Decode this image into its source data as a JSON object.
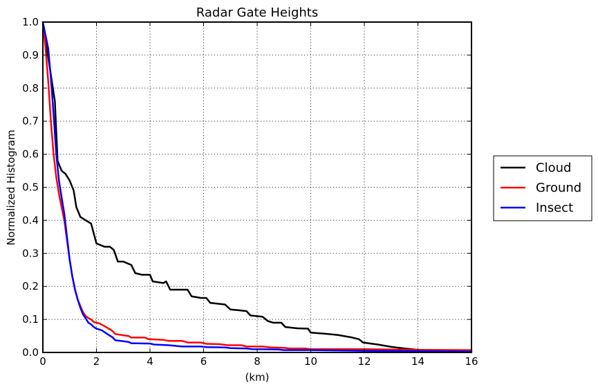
{
  "chart_data": {
    "type": "line",
    "title": "Radar Gate Heights",
    "xlabel": "(km)",
    "ylabel": "Normalized Histogram",
    "xlim": [
      0,
      16
    ],
    "ylim": [
      0,
      1.0
    ],
    "x_ticks": [
      "0",
      "2",
      "4",
      "6",
      "8",
      "10",
      "12",
      "14",
      "16"
    ],
    "y_ticks": [
      "0.0",
      "0.1",
      "0.2",
      "0.3",
      "0.4",
      "0.5",
      "0.6",
      "0.7",
      "0.8",
      "0.9",
      "1.0"
    ],
    "grid": true,
    "legend_position": "right, outside plot",
    "series": [
      {
        "name": "Cloud",
        "color": "#000000",
        "points": [
          [
            0,
            1.0
          ],
          [
            0.15,
            0.92
          ],
          [
            0.3,
            0.84
          ],
          [
            0.45,
            0.76
          ],
          [
            0.55,
            0.58
          ],
          [
            0.7,
            0.55
          ],
          [
            0.85,
            0.54
          ],
          [
            1.0,
            0.52
          ],
          [
            1.15,
            0.49
          ],
          [
            1.25,
            0.44
          ],
          [
            1.4,
            0.41
          ],
          [
            1.6,
            0.4
          ],
          [
            1.8,
            0.39
          ],
          [
            2.0,
            0.33
          ],
          [
            2.3,
            0.32
          ],
          [
            2.5,
            0.32
          ],
          [
            2.65,
            0.31
          ],
          [
            2.8,
            0.275
          ],
          [
            3.0,
            0.275
          ],
          [
            3.15,
            0.27
          ],
          [
            3.3,
            0.265
          ],
          [
            3.45,
            0.24
          ],
          [
            3.7,
            0.235
          ],
          [
            4.0,
            0.235
          ],
          [
            4.1,
            0.215
          ],
          [
            4.5,
            0.21
          ],
          [
            4.6,
            0.215
          ],
          [
            4.75,
            0.19
          ],
          [
            5.2,
            0.19
          ],
          [
            5.4,
            0.19
          ],
          [
            5.55,
            0.17
          ],
          [
            5.9,
            0.165
          ],
          [
            6.1,
            0.165
          ],
          [
            6.25,
            0.15
          ],
          [
            6.8,
            0.145
          ],
          [
            7.0,
            0.13
          ],
          [
            7.3,
            0.128
          ],
          [
            7.6,
            0.125
          ],
          [
            7.75,
            0.112
          ],
          [
            8.2,
            0.108
          ],
          [
            8.4,
            0.095
          ],
          [
            8.6,
            0.09
          ],
          [
            8.9,
            0.09
          ],
          [
            9.05,
            0.077
          ],
          [
            9.5,
            0.073
          ],
          [
            9.9,
            0.072
          ],
          [
            10.0,
            0.06
          ],
          [
            10.5,
            0.057
          ],
          [
            11.0,
            0.053
          ],
          [
            11.5,
            0.046
          ],
          [
            11.8,
            0.04
          ],
          [
            11.95,
            0.03
          ],
          [
            12.5,
            0.024
          ],
          [
            13.0,
            0.017
          ],
          [
            13.5,
            0.012
          ],
          [
            14.0,
            0.008
          ],
          [
            15.0,
            0.005
          ],
          [
            16.0,
            0.003
          ]
        ]
      },
      {
        "name": "Ground",
        "color": "#ff0000",
        "points": [
          [
            0,
            1.0
          ],
          [
            0.1,
            0.92
          ],
          [
            0.2,
            0.82
          ],
          [
            0.3,
            0.7
          ],
          [
            0.4,
            0.6
          ],
          [
            0.5,
            0.53
          ],
          [
            0.6,
            0.48
          ],
          [
            0.7,
            0.44
          ],
          [
            0.8,
            0.4
          ],
          [
            0.9,
            0.34
          ],
          [
            1.0,
            0.28
          ],
          [
            1.1,
            0.23
          ],
          [
            1.2,
            0.19
          ],
          [
            1.3,
            0.16
          ],
          [
            1.4,
            0.14
          ],
          [
            1.5,
            0.122
          ],
          [
            1.6,
            0.11
          ],
          [
            1.7,
            0.104
          ],
          [
            1.8,
            0.1
          ],
          [
            1.9,
            0.092
          ],
          [
            2.1,
            0.088
          ],
          [
            2.3,
            0.08
          ],
          [
            2.5,
            0.07
          ],
          [
            2.6,
            0.065
          ],
          [
            2.7,
            0.056
          ],
          [
            3.0,
            0.052
          ],
          [
            3.2,
            0.05
          ],
          [
            3.3,
            0.045
          ],
          [
            3.8,
            0.045
          ],
          [
            3.95,
            0.04
          ],
          [
            4.5,
            0.038
          ],
          [
            4.7,
            0.035
          ],
          [
            5.2,
            0.035
          ],
          [
            5.4,
            0.03
          ],
          [
            5.9,
            0.03
          ],
          [
            6.1,
            0.026
          ],
          [
            6.6,
            0.025
          ],
          [
            6.9,
            0.022
          ],
          [
            7.4,
            0.022
          ],
          [
            7.6,
            0.018
          ],
          [
            8.2,
            0.018
          ],
          [
            8.5,
            0.015
          ],
          [
            9.0,
            0.014
          ],
          [
            9.2,
            0.012
          ],
          [
            9.8,
            0.012
          ],
          [
            10.0,
            0.01
          ],
          [
            12.0,
            0.01
          ],
          [
            14.0,
            0.008
          ],
          [
            16.0,
            0.007
          ]
        ]
      },
      {
        "name": "Insect",
        "color": "#0000ff",
        "points": [
          [
            0,
            1.0
          ],
          [
            0.1,
            0.96
          ],
          [
            0.2,
            0.92
          ],
          [
            0.3,
            0.83
          ],
          [
            0.4,
            0.72
          ],
          [
            0.5,
            0.6
          ],
          [
            0.6,
            0.52
          ],
          [
            0.7,
            0.47
          ],
          [
            0.8,
            0.42
          ],
          [
            0.9,
            0.35
          ],
          [
            1.0,
            0.28
          ],
          [
            1.1,
            0.23
          ],
          [
            1.2,
            0.19
          ],
          [
            1.3,
            0.16
          ],
          [
            1.4,
            0.135
          ],
          [
            1.5,
            0.115
          ],
          [
            1.6,
            0.103
          ],
          [
            1.7,
            0.09
          ],
          [
            1.8,
            0.085
          ],
          [
            1.9,
            0.077
          ],
          [
            2.0,
            0.072
          ],
          [
            2.2,
            0.067
          ],
          [
            2.4,
            0.056
          ],
          [
            2.6,
            0.046
          ],
          [
            2.7,
            0.037
          ],
          [
            3.0,
            0.034
          ],
          [
            3.2,
            0.032
          ],
          [
            3.3,
            0.028
          ],
          [
            4.0,
            0.027
          ],
          [
            4.15,
            0.024
          ],
          [
            4.7,
            0.022
          ],
          [
            5.2,
            0.018
          ],
          [
            5.9,
            0.018
          ],
          [
            6.1,
            0.016
          ],
          [
            6.8,
            0.015
          ],
          [
            7.0,
            0.013
          ],
          [
            7.6,
            0.012
          ],
          [
            7.8,
            0.01
          ],
          [
            8.8,
            0.009
          ],
          [
            9.0,
            0.007
          ],
          [
            10.0,
            0.007
          ],
          [
            12.0,
            0.005
          ],
          [
            14.0,
            0.004
          ],
          [
            16.0,
            0.003
          ]
        ]
      }
    ]
  }
}
